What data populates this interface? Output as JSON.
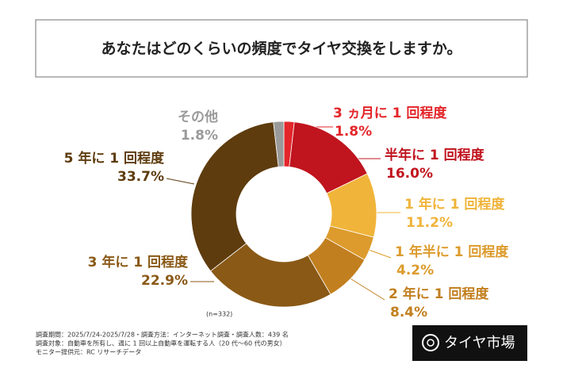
{
  "chart_data": {
    "type": "donut",
    "title": "あなたはどのくらいの頻度でタイヤ交換をしますか。",
    "categories": [
      "3 ヵ月に 1 回程度",
      "半年に 1 回程度",
      "1 年に 1 回程度",
      "1 年半に 1 回程度",
      "2 年に 1 回程度",
      "3 年に 1 回程度",
      "5 年に 1 回程度",
      "その他"
    ],
    "values": [
      1.8,
      16.0,
      11.2,
      4.2,
      8.4,
      22.9,
      33.7,
      1.8
    ],
    "value_labels": [
      "1.8%",
      "16.0%",
      "11.2%",
      "4.2%",
      "8.4%",
      "22.9%",
      "33.7%",
      "1.8%"
    ],
    "colors": [
      "#e3262a",
      "#c0141e",
      "#f0b43a",
      "#dc9b2c",
      "#c27f1f",
      "#8a5916",
      "#5e3c0e",
      "#9a9a9a"
    ],
    "annotation": "(n=332)"
  },
  "notes": [
    "調査期間：2025/7/24-2025/7/28・調査方法：インターネット調査・調査人数：439 名",
    "調査対象：自動車を所有し、週に 1 回以上自動車を運転する人（20 代～60 代の男女）",
    "モニター提供元：RC リサーチデータ"
  ],
  "brand": "タイヤ市場"
}
